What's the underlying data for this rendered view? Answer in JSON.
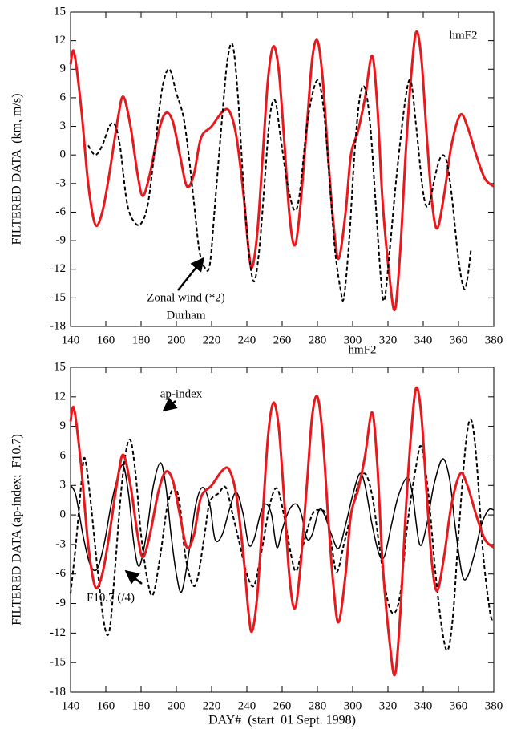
{
  "chart_data": [
    {
      "type": "line",
      "ylabel": "FILTERED DATA  (km, m/s)",
      "xlim": [
        140,
        380
      ],
      "ylim": [
        -18,
        15
      ],
      "xticks": [
        140,
        160,
        180,
        200,
        220,
        240,
        260,
        280,
        300,
        320,
        340,
        360,
        380
      ],
      "yticks": [
        -18,
        -15,
        -12,
        -9,
        -6,
        -3,
        0,
        3,
        6,
        9,
        12,
        15
      ],
      "series": [
        {
          "name": "hmF2",
          "color": "#e8191c",
          "dash": false,
          "x": [
            140,
            142,
            146,
            150,
            154,
            158,
            162,
            167,
            170,
            174,
            178,
            181,
            185,
            190,
            194,
            198,
            202,
            206,
            210,
            214,
            220,
            226,
            230,
            234,
            238,
            241,
            243,
            246,
            249,
            252,
            255,
            258,
            261,
            264,
            267,
            270,
            274,
            277,
            280,
            283,
            286,
            289,
            292,
            296,
            299,
            303,
            307,
            311,
            314,
            317,
            321,
            324,
            327,
            330,
            333,
            336,
            339,
            342,
            345,
            348,
            352,
            356,
            361,
            365,
            370,
            375,
            380
          ],
          "values": [
            9.5,
            10.8,
            5,
            -3,
            -7.3,
            -6,
            -2,
            4,
            6.1,
            3,
            -2,
            -4.3,
            -2,
            2.5,
            4.4,
            3.5,
            0,
            -3.3,
            -2,
            1.8,
            3,
            4.5,
            4.6,
            2,
            -4,
            -10,
            -11.8,
            -8,
            0,
            8,
            11.4,
            9,
            2,
            -6,
            -9.5,
            -6,
            3,
            10,
            12,
            8,
            0,
            -7,
            -10.9,
            -6,
            0,
            2.5,
            6,
            10.4,
            5,
            -5,
            -13,
            -16.2,
            -10,
            0,
            8,
            12.9,
            10,
            2,
            -5,
            -7.7,
            -4,
            1,
            4.2,
            3,
            0,
            -2.5,
            -3.3
          ]
        },
        {
          "name": "Zonal wind (*2)",
          "color": "#000000",
          "dash": true,
          "x": [
            150,
            154,
            158,
            162,
            165,
            168,
            172,
            176,
            180,
            184,
            188,
            192,
            196,
            200,
            204,
            207,
            210,
            213,
            216,
            219,
            222,
            226,
            229,
            232,
            235,
            238,
            241,
            244,
            247,
            250,
            253,
            256,
            259,
            263,
            267,
            270,
            274,
            278,
            281,
            284,
            287,
            290,
            293,
            295,
            298,
            301,
            304,
            307,
            310,
            313,
            316,
            318,
            321,
            325,
            330,
            333,
            336,
            340,
            343,
            347,
            350,
            353,
            356,
            360,
            363,
            365,
            367
          ],
          "values": [
            1,
            0,
            1,
            3,
            3.2,
            1,
            -5,
            -7,
            -7.2,
            -5,
            1,
            7,
            9,
            6.5,
            4,
            0,
            -5,
            -10,
            -11.8,
            -11.5,
            -5,
            4,
            10,
            11.5,
            6,
            -3,
            -10,
            -13.3,
            -10,
            -3,
            4,
            5.7,
            2,
            -3,
            -5.8,
            -4,
            3,
            7,
            7.6,
            4,
            -3,
            -10,
            -14,
            -15,
            -9,
            0,
            6,
            7,
            3,
            -5,
            -13,
            -15.2,
            -10,
            -2,
            6,
            7.7,
            3,
            -4,
            -5.3,
            -2,
            -0.2,
            -0.5,
            -4,
            -11,
            -14,
            -13,
            -10
          ]
        }
      ],
      "annotations": [
        "Durham"
      ]
    },
    {
      "type": "line",
      "ylabel": "FILTERED DATA (ap-index;  F10.7)",
      "xlabel": "DAY#  (start  01 Sept. 1998)",
      "xlim": [
        140,
        380
      ],
      "ylim": [
        -18,
        15
      ],
      "xticks": [
        140,
        160,
        180,
        200,
        220,
        240,
        260,
        280,
        300,
        320,
        340,
        360,
        380
      ],
      "yticks": [
        -18,
        -15,
        -12,
        -9,
        -6,
        -3,
        0,
        3,
        6,
        9,
        12,
        15
      ],
      "series": [
        {
          "name": "ap-index",
          "color": "#000000",
          "dash": false,
          "x": [
            140,
            143,
            147,
            151,
            155,
            159,
            163,
            167,
            170,
            173,
            176,
            179,
            183,
            187,
            191,
            194,
            197,
            200,
            203,
            207,
            211,
            215,
            219,
            222,
            226,
            230,
            234,
            238,
            241,
            244,
            248,
            251,
            254,
            257,
            260,
            264,
            268,
            271,
            274,
            277,
            281,
            284,
            288,
            292,
            296,
            300,
            304,
            307,
            311,
            315,
            318,
            322,
            326,
            331,
            334,
            338,
            342,
            346,
            351,
            355,
            358,
            362,
            365,
            369,
            373,
            377,
            380
          ],
          "values": [
            3,
            2,
            -2,
            -5,
            -5.5,
            -3,
            1,
            4,
            5,
            2,
            -3,
            -5.2,
            -2,
            3,
            5.3,
            3,
            -2,
            -6,
            -7.8,
            -4,
            1,
            2.8,
            1,
            -2.5,
            -2,
            0.5,
            2.3,
            0,
            -3,
            -2.5,
            0.3,
            1.1,
            0,
            -3.3,
            -1.5,
            0.5,
            1.1,
            0,
            -2.4,
            -2,
            0.5,
            0,
            -2,
            -3.4,
            -1,
            2,
            4.2,
            3,
            -1,
            -4,
            -4.2,
            -1,
            2,
            3.8,
            2,
            -3,
            -1,
            3,
            5.7,
            3.6,
            -1,
            -6,
            -6.3,
            -4,
            -1,
            0.5,
            0.5
          ]
        },
        {
          "name": "F10.7 (/4)",
          "color": "#000000",
          "dash": true,
          "x": [
            140,
            143,
            146,
            148,
            151,
            155,
            159,
            162,
            165,
            168,
            171,
            174,
            177,
            180,
            184,
            187,
            191,
            195,
            199,
            202,
            205,
            209,
            212,
            216,
            219,
            224,
            228,
            232,
            236,
            240,
            244,
            248,
            253,
            257,
            261,
            265,
            268,
            272,
            277,
            281,
            285,
            288,
            291,
            295,
            299,
            303,
            307,
            311,
            315,
            319,
            323,
            327,
            331,
            336,
            339,
            343,
            347,
            351,
            354,
            357,
            360,
            364,
            367,
            370,
            374,
            378,
            380
          ],
          "values": [
            -8,
            -3,
            3,
            5.8,
            2,
            -5,
            -11,
            -11.8,
            -6,
            1,
            6,
            7.6,
            4,
            -2,
            -7,
            -8,
            -4,
            1,
            2.8,
            1,
            -4,
            -7,
            -6.5,
            -2,
            1.3,
            2.2,
            2.8,
            0,
            -3,
            -6,
            -7.2,
            -4,
            1,
            2.7,
            0,
            -4,
            -5.7,
            -3,
            0,
            0.5,
            0,
            -3,
            -5.8,
            -3,
            0,
            3,
            4.2,
            2,
            -3,
            -8,
            -10,
            -8,
            -1,
            5,
            6.9,
            2,
            -6,
            -12,
            -13.7,
            -10,
            -2,
            7,
            9.7,
            6,
            -4,
            -10,
            -10.5
          ]
        },
        {
          "name": "hmF2",
          "color": "#e8191c",
          "dash": false,
          "x": [
            140,
            142,
            146,
            150,
            154,
            158,
            162,
            167,
            170,
            174,
            178,
            181,
            185,
            190,
            194,
            198,
            202,
            206,
            210,
            214,
            220,
            226,
            230,
            234,
            238,
            241,
            243,
            246,
            249,
            252,
            255,
            258,
            261,
            264,
            267,
            270,
            274,
            277,
            280,
            283,
            286,
            289,
            292,
            296,
            299,
            303,
            307,
            311,
            314,
            317,
            321,
            324,
            327,
            330,
            333,
            336,
            339,
            342,
            345,
            348,
            352,
            356,
            361,
            365,
            370,
            375,
            380
          ],
          "values": [
            9.5,
            10.8,
            5,
            -3,
            -7.3,
            -6,
            -2,
            4,
            6.1,
            3,
            -2,
            -4.3,
            -2,
            2.5,
            4.4,
            3.5,
            0,
            -3.3,
            -2,
            1.8,
            3,
            4.5,
            4.6,
            2,
            -4,
            -10,
            -11.8,
            -8,
            0,
            8,
            11.4,
            9,
            2,
            -6,
            -9.5,
            -6,
            3,
            10,
            12,
            8,
            0,
            -7,
            -10.9,
            -6,
            0,
            2.5,
            6,
            10.4,
            5,
            -5,
            -13,
            -16.2,
            -10,
            0,
            8,
            12.9,
            10,
            2,
            -5,
            -7.7,
            -4,
            1,
            4.2,
            3,
            0,
            -2.5,
            -3.3
          ]
        }
      ]
    }
  ]
}
